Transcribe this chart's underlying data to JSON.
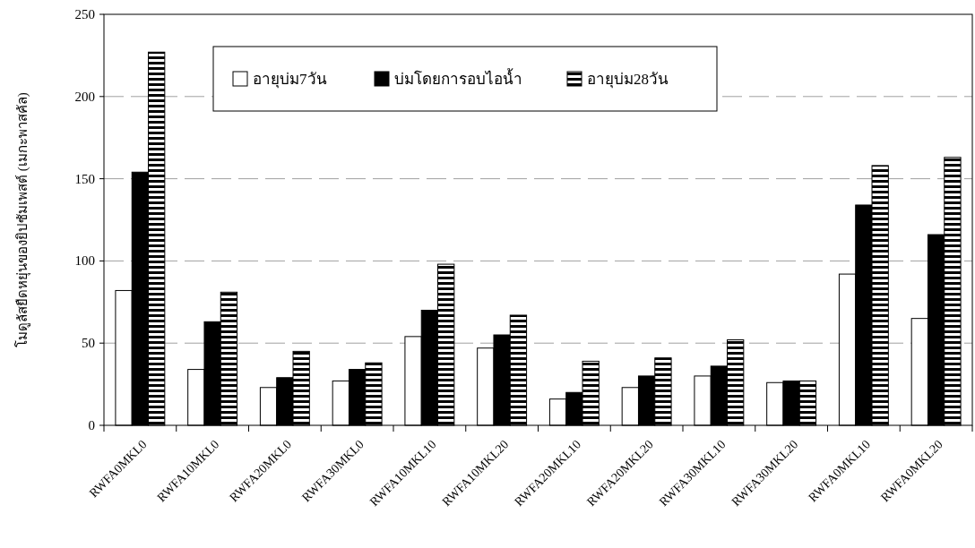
{
  "chart_data": {
    "type": "bar",
    "ylabel": "โมดูลัสยืดหยุ่นของยิปซัมเพสต์ (เมกะพาสคัล)",
    "categories": [
      "RWFA0MKL0",
      "RWFA10MKL0",
      "RWFA20MKL0",
      "RWFA30MKL0",
      "RWFA10MKL10",
      "RWFA10MKL20",
      "RWFA20MKL10",
      "RWFA20MKL20",
      "RWFA30MKL10",
      "RWFA30MKL20",
      "RWFA0MKL10",
      "RWFA0MKL20"
    ],
    "series": [
      {
        "name": "อายุบ่ม7วัน",
        "color": "#ffffff",
        "values": [
          82,
          34,
          23,
          27,
          54,
          47,
          16,
          23,
          30,
          26,
          92,
          65
        ]
      },
      {
        "name": "บ่มโดยการอบไอน้ำ",
        "color": "#000000",
        "values": [
          154,
          63,
          29,
          34,
          70,
          55,
          20,
          30,
          36,
          27,
          134,
          116
        ]
      },
      {
        "name": "อายุบ่ม28วัน",
        "color": "#000000",
        "values": [
          227,
          81,
          45,
          38,
          98,
          67,
          39,
          41,
          52,
          27,
          158,
          163
        ]
      }
    ],
    "ylim": [
      0,
      250
    ],
    "yticks": [
      0,
      50,
      100,
      150,
      200,
      250
    ],
    "grid": "y",
    "legend": "top"
  }
}
